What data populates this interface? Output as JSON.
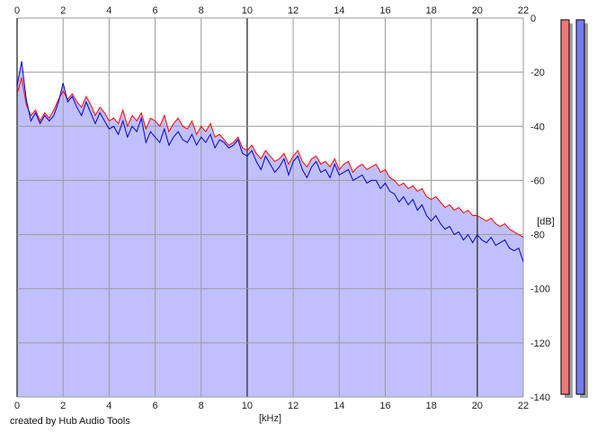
{
  "footer": {
    "credit": "created by Hub Audio Tools"
  },
  "chart_data": {
    "type": "area",
    "title": "",
    "xlabel": "[kHz]",
    "ylabel": "[dB]",
    "xlim": [
      0,
      22
    ],
    "ylim": [
      -140,
      0
    ],
    "x_ticks": [
      0,
      2,
      4,
      6,
      8,
      10,
      12,
      14,
      16,
      18,
      20,
      22
    ],
    "y_ticks": [
      0,
      -20,
      -40,
      -60,
      -80,
      -100,
      -120,
      -140
    ],
    "y_tick_labels": [
      "0",
      "-20",
      "-40",
      "-60",
      "-80",
      "-100",
      "-120",
      "-140"
    ],
    "grid": true,
    "fill_color": "#c0c0ff",
    "series": [
      {
        "color": "#ff0000",
        "x": [
          0,
          0.2,
          0.4,
          0.6,
          0.8,
          1,
          1.2,
          1.4,
          1.6,
          1.8,
          2,
          2.2,
          2.4,
          2.6,
          2.8,
          3,
          3.2,
          3.4,
          3.6,
          3.8,
          4,
          4.2,
          4.4,
          4.6,
          4.8,
          5,
          5.2,
          5.4,
          5.6,
          5.8,
          6,
          6.2,
          6.4,
          6.6,
          6.8,
          7,
          7.2,
          7.4,
          7.6,
          7.8,
          8,
          8.2,
          8.4,
          8.6,
          8.8,
          9,
          9.2,
          9.4,
          9.6,
          9.8,
          10,
          10.2,
          10.4,
          10.6,
          10.8,
          11,
          11.2,
          11.4,
          11.6,
          11.8,
          12,
          12.2,
          12.4,
          12.6,
          12.8,
          13,
          13.2,
          13.4,
          13.6,
          13.8,
          14,
          14.2,
          14.4,
          14.6,
          14.8,
          15,
          15.2,
          15.4,
          15.6,
          15.8,
          16,
          16.2,
          16.4,
          16.6,
          16.8,
          17,
          17.2,
          17.4,
          17.6,
          17.8,
          18,
          18.2,
          18.4,
          18.6,
          18.8,
          19,
          19.2,
          19.4,
          19.6,
          19.8,
          20,
          20.2,
          20.4,
          20.6,
          20.8,
          21,
          21.2,
          21.4,
          21.6,
          21.8,
          22
        ],
        "values": [
          -28,
          -22,
          -32,
          -36,
          -34,
          -38,
          -35,
          -37,
          -34,
          -30,
          -27,
          -30,
          -28,
          -31,
          -33,
          -29,
          -32,
          -36,
          -33,
          -35,
          -38,
          -37,
          -39,
          -34,
          -40,
          -36,
          -38,
          -35,
          -41,
          -37,
          -38,
          -40,
          -36,
          -42,
          -39,
          -37,
          -40,
          -41,
          -38,
          -43,
          -40,
          -42,
          -39,
          -44,
          -43,
          -45,
          -47,
          -46,
          -44,
          -48,
          -49,
          -47,
          -50,
          -52,
          -49,
          -51,
          -53,
          -52,
          -50,
          -54,
          -51,
          -49,
          -53,
          -55,
          -52,
          -51,
          -54,
          -53,
          -55,
          -52,
          -56,
          -54,
          -53,
          -57,
          -55,
          -54,
          -56,
          -55,
          -54,
          -57,
          -56,
          -59,
          -60,
          -62,
          -61,
          -63,
          -62,
          -64,
          -63,
          -66,
          -67,
          -66,
          -68,
          -70,
          -69,
          -71,
          -70,
          -72,
          -71,
          -73,
          -73,
          -74,
          -75,
          -74,
          -76,
          -77,
          -76,
          -78,
          -79,
          -80,
          -81
        ]
      },
      {
        "color": "#0000cc",
        "x": [
          0,
          0.2,
          0.4,
          0.6,
          0.8,
          1,
          1.2,
          1.4,
          1.6,
          1.8,
          2,
          2.2,
          2.4,
          2.6,
          2.8,
          3,
          3.2,
          3.4,
          3.6,
          3.8,
          4,
          4.2,
          4.4,
          4.6,
          4.8,
          5,
          5.2,
          5.4,
          5.6,
          5.8,
          6,
          6.2,
          6.4,
          6.6,
          6.8,
          7,
          7.2,
          7.4,
          7.6,
          7.8,
          8,
          8.2,
          8.4,
          8.6,
          8.8,
          9,
          9.2,
          9.4,
          9.6,
          9.8,
          10,
          10.2,
          10.4,
          10.6,
          10.8,
          11,
          11.2,
          11.4,
          11.6,
          11.8,
          12,
          12.2,
          12.4,
          12.6,
          12.8,
          13,
          13.2,
          13.4,
          13.6,
          13.8,
          14,
          14.2,
          14.4,
          14.6,
          14.8,
          15,
          15.2,
          15.4,
          15.6,
          15.8,
          16,
          16.2,
          16.4,
          16.6,
          16.8,
          17,
          17.2,
          17.4,
          17.6,
          17.8,
          18,
          18.2,
          18.4,
          18.6,
          18.8,
          19,
          19.2,
          19.4,
          19.6,
          19.8,
          20,
          20.2,
          20.4,
          20.6,
          20.8,
          21,
          21.2,
          21.4,
          21.6,
          21.8,
          22
        ],
        "values": [
          -25,
          -16,
          -30,
          -38,
          -35,
          -39,
          -36,
          -38,
          -36,
          -31,
          -24,
          -31,
          -29,
          -33,
          -36,
          -31,
          -35,
          -39,
          -35,
          -38,
          -41,
          -40,
          -43,
          -38,
          -44,
          -40,
          -42,
          -37,
          -46,
          -42,
          -44,
          -46,
          -41,
          -47,
          -44,
          -42,
          -45,
          -46,
          -43,
          -47,
          -44,
          -46,
          -43,
          -48,
          -45,
          -46,
          -48,
          -47,
          -45,
          -50,
          -51,
          -49,
          -53,
          -56,
          -51,
          -54,
          -57,
          -55,
          -52,
          -58,
          -53,
          -51,
          -56,
          -59,
          -55,
          -53,
          -57,
          -56,
          -59,
          -54,
          -58,
          -57,
          -56,
          -60,
          -59,
          -58,
          -61,
          -60,
          -60,
          -63,
          -61,
          -64,
          -65,
          -68,
          -66,
          -69,
          -67,
          -71,
          -69,
          -73,
          -75,
          -73,
          -76,
          -78,
          -77,
          -80,
          -79,
          -82,
          -80,
          -83,
          -80,
          -82,
          -83,
          -81,
          -84,
          -83,
          -82,
          -85,
          -86,
          -85,
          -90
        ]
      }
    ]
  }
}
